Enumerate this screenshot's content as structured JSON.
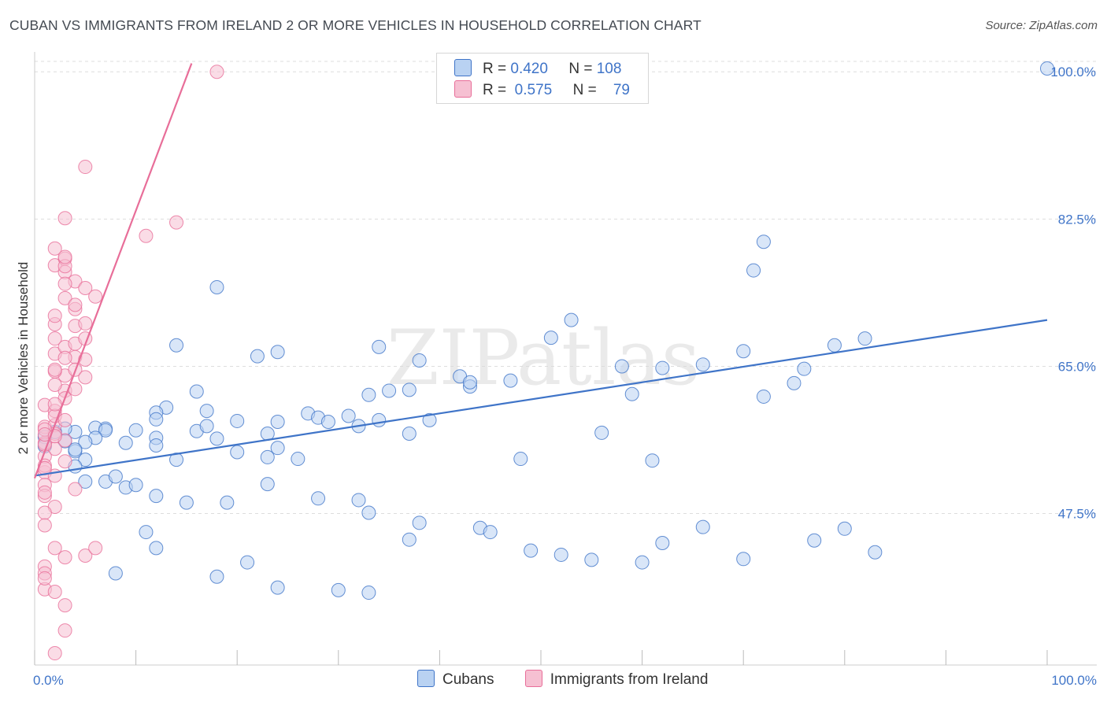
{
  "header": {
    "title": "CUBAN VS IMMIGRANTS FROM IRELAND 2 OR MORE VEHICLES IN HOUSEHOLD CORRELATION CHART",
    "source": "Source: ZipAtlas.com"
  },
  "watermark": "ZIPatlas",
  "colors": {
    "blue": "#3f74c8",
    "blue_fill": "#b9d2f2",
    "pink": "#e86e99",
    "pink_fill": "#f6c0d2",
    "grid": "#dddddd",
    "tick_label": "#3f74c8"
  },
  "legend": {
    "rows": [
      {
        "r_label": "R =",
        "r_value": "0.420",
        "n_label": "N =",
        "n_value": "108"
      },
      {
        "r_label": "R =",
        "r_value": "0.575",
        "n_label": "N =",
        "n_value": "79"
      }
    ]
  },
  "bottom_legend": {
    "items": [
      "Cubans",
      "Immigrants from Ireland"
    ]
  },
  "chart_data": {
    "type": "scatter",
    "title": "CUBAN VS IMMIGRANTS FROM IRELAND 2 OR MORE VEHICLES IN HOUSEHOLD CORRELATION CHART",
    "xlabel": "",
    "ylabel": "2 or more Vehicles in Household",
    "xlim": [
      0,
      100
    ],
    "ylim": [
      29.5,
      101.8
    ],
    "x_tick_labels": [
      "0.0%",
      "100.0%"
    ],
    "y_ticks": [
      47.5,
      65.0,
      82.5,
      100.0
    ],
    "y_tick_labels": [
      "47.5%",
      "65.0%",
      "82.5%",
      "100.0%"
    ],
    "grid": true,
    "legend_position": "top-center",
    "series": [
      {
        "name": "Cubans",
        "r": 0.42,
        "n": 108,
        "trend": {
          "x": [
            0,
            100
          ],
          "y": [
            52.0,
            70.5
          ]
        },
        "points": [
          [
            100,
            100.4
          ],
          [
            18,
            74.4
          ],
          [
            53,
            70.5
          ],
          [
            51,
            68.4
          ],
          [
            14,
            67.5
          ],
          [
            34,
            67.3
          ],
          [
            24,
            66.7
          ],
          [
            22,
            66.2
          ],
          [
            38,
            65.7
          ],
          [
            70,
            66.8
          ],
          [
            58,
            65.0
          ],
          [
            66,
            65.2
          ],
          [
            62,
            64.8
          ],
          [
            79,
            67.5
          ],
          [
            82,
            68.3
          ],
          [
            76,
            64.7
          ],
          [
            71,
            76.4
          ],
          [
            72,
            79.8
          ],
          [
            72,
            61.4
          ],
          [
            75,
            63.0
          ],
          [
            42,
            63.8
          ],
          [
            47,
            63.3
          ],
          [
            43,
            62.6
          ],
          [
            37,
            62.2
          ],
          [
            35,
            62.1
          ],
          [
            33,
            61.6
          ],
          [
            16,
            62.0
          ],
          [
            13,
            60.1
          ],
          [
            17,
            59.7
          ],
          [
            12,
            59.5
          ],
          [
            27,
            59.4
          ],
          [
            28,
            58.9
          ],
          [
            31,
            59.1
          ],
          [
            24,
            58.4
          ],
          [
            32,
            57.9
          ],
          [
            39,
            58.6
          ],
          [
            29,
            58.4
          ],
          [
            43,
            63.1
          ],
          [
            20,
            58.5
          ],
          [
            34,
            58.6
          ],
          [
            59,
            61.7
          ],
          [
            56,
            57.1
          ],
          [
            48,
            54.0
          ],
          [
            61,
            53.8
          ],
          [
            18,
            56.4
          ],
          [
            20,
            54.8
          ],
          [
            26,
            54.0
          ],
          [
            12,
            56.5
          ],
          [
            14,
            53.9
          ],
          [
            16,
            57.3
          ],
          [
            37,
            57.0
          ],
          [
            17,
            57.9
          ],
          [
            12,
            58.7
          ],
          [
            23,
            57.0
          ],
          [
            7,
            57.6
          ],
          [
            10,
            57.4
          ],
          [
            6,
            57.7
          ],
          [
            4,
            57.2
          ],
          [
            3,
            57.6
          ],
          [
            2,
            57.2
          ],
          [
            1,
            56.6
          ],
          [
            1,
            55.5
          ],
          [
            7,
            57.4
          ],
          [
            9,
            55.9
          ],
          [
            12,
            55.6
          ],
          [
            3,
            56.1
          ],
          [
            5,
            53.9
          ],
          [
            4,
            54.9
          ],
          [
            6,
            56.5
          ],
          [
            5,
            56.0
          ],
          [
            4,
            55.1
          ],
          [
            23,
            54.2
          ],
          [
            24,
            55.3
          ],
          [
            4,
            53.1
          ],
          [
            5,
            51.3
          ],
          [
            7,
            51.3
          ],
          [
            8,
            51.9
          ],
          [
            9,
            50.6
          ],
          [
            10,
            50.9
          ],
          [
            12,
            49.6
          ],
          [
            15,
            48.8
          ],
          [
            19,
            48.8
          ],
          [
            23,
            51.0
          ],
          [
            28,
            49.3
          ],
          [
            32,
            49.1
          ],
          [
            33,
            47.6
          ],
          [
            37,
            44.4
          ],
          [
            38,
            46.4
          ],
          [
            44,
            45.8
          ],
          [
            45,
            45.3
          ],
          [
            49,
            43.1
          ],
          [
            52,
            42.6
          ],
          [
            55,
            42.0
          ],
          [
            60,
            41.7
          ],
          [
            62,
            44.0
          ],
          [
            66,
            45.9
          ],
          [
            70,
            42.1
          ],
          [
            77,
            44.3
          ],
          [
            80,
            45.7
          ],
          [
            83,
            42.9
          ],
          [
            11,
            45.3
          ],
          [
            12,
            43.4
          ],
          [
            21,
            41.7
          ],
          [
            18,
            40.0
          ],
          [
            24,
            38.7
          ],
          [
            30,
            38.4
          ],
          [
            33,
            38.1
          ],
          [
            8,
            40.4
          ]
        ]
      },
      {
        "name": "Immigrants from Ireland",
        "r": 0.575,
        "n": 79,
        "trend": {
          "x": [
            0,
            15.5
          ],
          "y": [
            51.7,
            101.0
          ]
        },
        "points": [
          [
            18,
            100.0
          ],
          [
            5,
            88.7
          ],
          [
            3,
            82.6
          ],
          [
            11,
            80.5
          ],
          [
            2,
            79.0
          ],
          [
            2,
            77.0
          ],
          [
            3,
            77.8
          ],
          [
            3,
            76.2
          ],
          [
            4,
            75.1
          ],
          [
            5,
            74.3
          ],
          [
            6,
            73.3
          ],
          [
            3,
            73.1
          ],
          [
            4,
            71.8
          ],
          [
            4,
            69.8
          ],
          [
            2,
            70.0
          ],
          [
            2,
            68.3
          ],
          [
            2,
            66.5
          ],
          [
            3,
            67.3
          ],
          [
            4,
            66.1
          ],
          [
            5,
            65.8
          ],
          [
            3,
            63.9
          ],
          [
            2,
            64.4
          ],
          [
            3,
            62.1
          ],
          [
            2,
            62.8
          ],
          [
            1,
            60.4
          ],
          [
            2,
            59.7
          ],
          [
            1,
            57.8
          ],
          [
            2,
            58.0
          ],
          [
            3,
            56.2
          ],
          [
            2,
            55.2
          ],
          [
            3,
            53.7
          ],
          [
            1,
            52.4
          ],
          [
            1,
            50.9
          ],
          [
            2,
            52.0
          ],
          [
            4,
            50.4
          ],
          [
            1,
            49.6
          ],
          [
            2,
            48.3
          ],
          [
            1,
            47.6
          ],
          [
            1,
            46.1
          ],
          [
            2,
            43.4
          ],
          [
            3,
            42.3
          ],
          [
            5,
            42.5
          ],
          [
            1,
            41.2
          ],
          [
            1,
            40.4
          ],
          [
            1,
            38.5
          ],
          [
            3,
            36.6
          ],
          [
            3,
            33.6
          ],
          [
            2,
            30.9
          ],
          [
            1,
            55.9
          ],
          [
            2,
            57.0
          ],
          [
            3,
            61.2
          ],
          [
            2,
            64.6
          ],
          [
            4,
            67.7
          ],
          [
            5,
            70.1
          ],
          [
            1,
            54.3
          ],
          [
            1,
            53.2
          ],
          [
            2,
            59.1
          ],
          [
            4,
            62.3
          ],
          [
            3,
            74.8
          ],
          [
            3,
            76.9
          ],
          [
            3,
            78.0
          ],
          [
            4,
            72.3
          ],
          [
            2,
            71.0
          ],
          [
            4,
            64.6
          ],
          [
            5,
            68.3
          ],
          [
            2,
            60.5
          ],
          [
            5,
            63.7
          ],
          [
            1,
            57.5
          ],
          [
            1,
            55.7
          ],
          [
            1,
            56.9
          ],
          [
            2,
            56.7
          ],
          [
            3,
            58.6
          ],
          [
            1,
            52.9
          ],
          [
            6,
            43.4
          ],
          [
            2,
            38.2
          ],
          [
            1,
            39.8
          ],
          [
            14,
            82.1
          ],
          [
            3,
            66.0
          ],
          [
            1,
            50.0
          ]
        ]
      }
    ]
  }
}
